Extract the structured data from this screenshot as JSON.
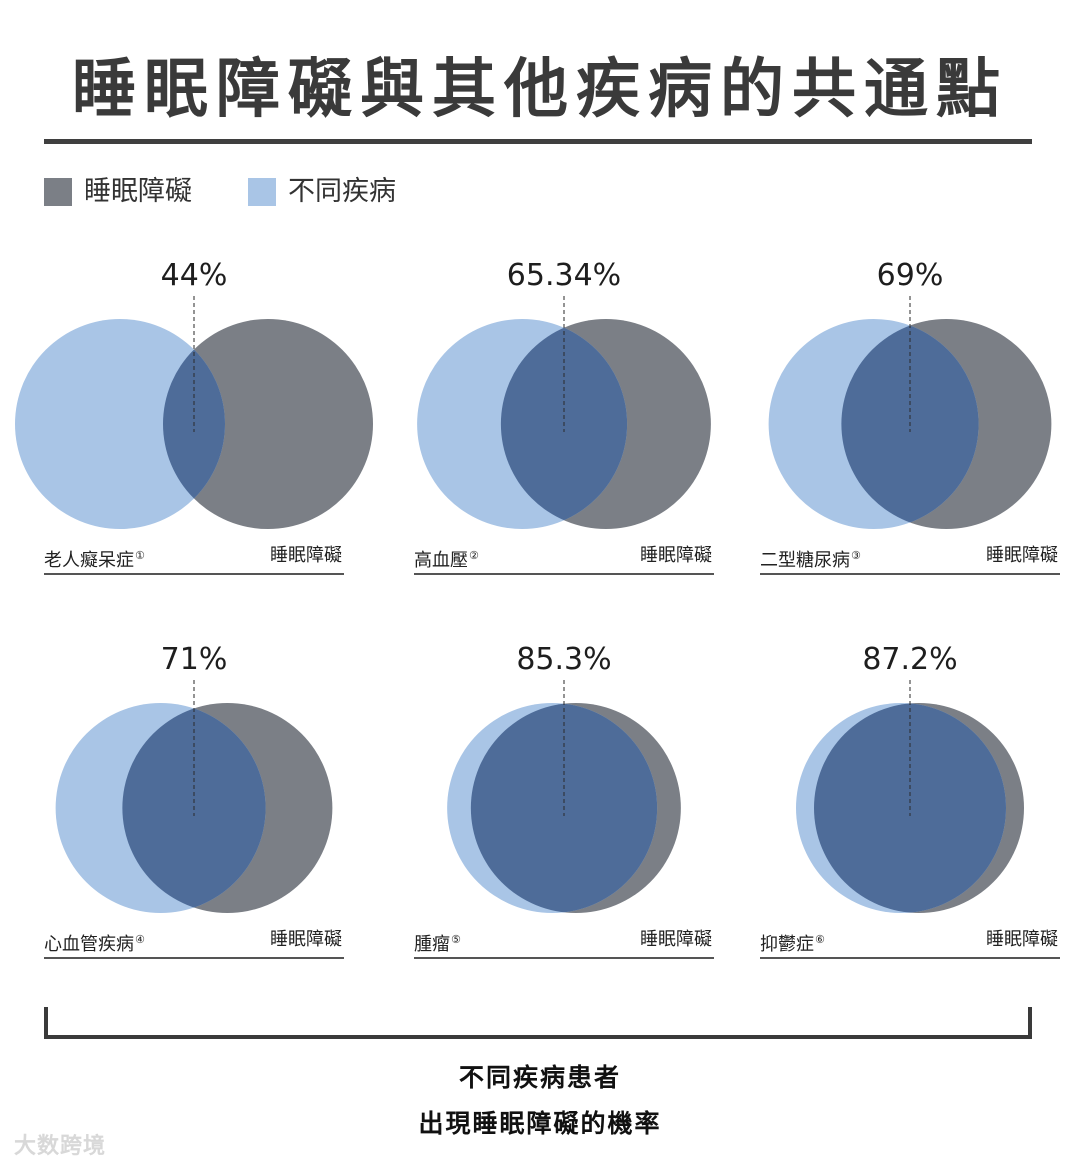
{
  "title": "睡眠障礙與其他疾病的共通點",
  "legend": [
    {
      "label": "睡眠障礙",
      "color": "#7b7f86"
    },
    {
      "label": "不同疾病",
      "color": "#a9c5e6"
    }
  ],
  "colors": {
    "sleep": "#7b7f86",
    "disease": "#a9c5e6",
    "overlap": "#4e6c99"
  },
  "chart_data": {
    "type": "venn",
    "series_labels": [
      "不同疾病",
      "睡眠障礙"
    ],
    "items": [
      {
        "disease": "老人癡呆症",
        "note": "①",
        "right_label": "睡眠障礙",
        "value_label": "44%",
        "value": 44
      },
      {
        "disease": "高血壓",
        "note": "②",
        "right_label": "睡眠障礙",
        "value_label": "65.34%",
        "value": 65.34
      },
      {
        "disease": "二型糖尿病",
        "note": "③",
        "right_label": "睡眠障礙",
        "value_label": "69%",
        "value": 69
      },
      {
        "disease": "心血管疾病",
        "note": "④",
        "right_label": "睡眠障礙",
        "value_label": "71%",
        "value": 71
      },
      {
        "disease": "腫瘤",
        "note": "⑤",
        "right_label": "睡眠障礙",
        "value_label": "85.3%",
        "value": 85.3
      },
      {
        "disease": "抑鬱症",
        "note": "⑥",
        "right_label": "睡眠障礙",
        "value_label": "87.2%",
        "value": 87.2
      }
    ]
  },
  "caption": {
    "line1": "不同疾病患者",
    "line2": "出現睡眠障礙的機率"
  },
  "watermark": "大数跨境"
}
